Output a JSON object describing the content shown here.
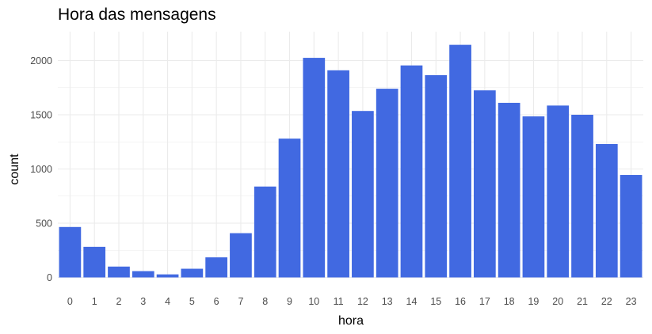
{
  "chart_data": {
    "type": "bar",
    "title": "Hora das mensagens",
    "xlabel": "hora",
    "ylabel": "count",
    "categories": [
      "0",
      "1",
      "2",
      "3",
      "4",
      "5",
      "6",
      "7",
      "8",
      "9",
      "10",
      "11",
      "12",
      "13",
      "14",
      "15",
      "16",
      "17",
      "18",
      "19",
      "20",
      "21",
      "22",
      "23"
    ],
    "values": [
      465,
      282,
      100,
      58,
      28,
      80,
      185,
      408,
      838,
      1280,
      2025,
      1910,
      1535,
      1740,
      1955,
      1865,
      2145,
      1725,
      1610,
      1485,
      1585,
      1500,
      1230,
      945
    ],
    "ylim": [
      0,
      2200
    ],
    "yticks": [
      "0",
      "500",
      "1000",
      "1500",
      "2000"
    ],
    "grid": true,
    "bar_color": "#4169E1",
    "grid_color": "#ebebeb"
  }
}
